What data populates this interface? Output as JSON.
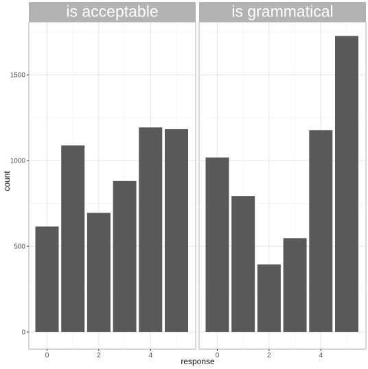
{
  "chart_data": {
    "type": "bar",
    "xlabel": "response",
    "ylabel": "count",
    "categories": [
      0,
      1,
      2,
      3,
      4,
      5
    ],
    "x_ticks": [
      "0",
      "2",
      "4"
    ],
    "y_ticks": [
      "0",
      "500",
      "1000",
      "1500"
    ],
    "ylim": [
      0,
      1800
    ],
    "grid": true,
    "panels": [
      {
        "title": "is  acceptable",
        "values": [
          615,
          1088,
          695,
          881,
          1194,
          1184
        ]
      },
      {
        "title": "is  grammatical",
        "values": [
          1018,
          792,
          394,
          547,
          1177,
          1727
        ]
      }
    ],
    "colors": {
      "bar": "#595959",
      "strip": "#b3b3b3",
      "panel_border": "#b0b0b0",
      "grid_major": "#e6e6e6",
      "grid_minor": "#f2f2f2"
    }
  }
}
